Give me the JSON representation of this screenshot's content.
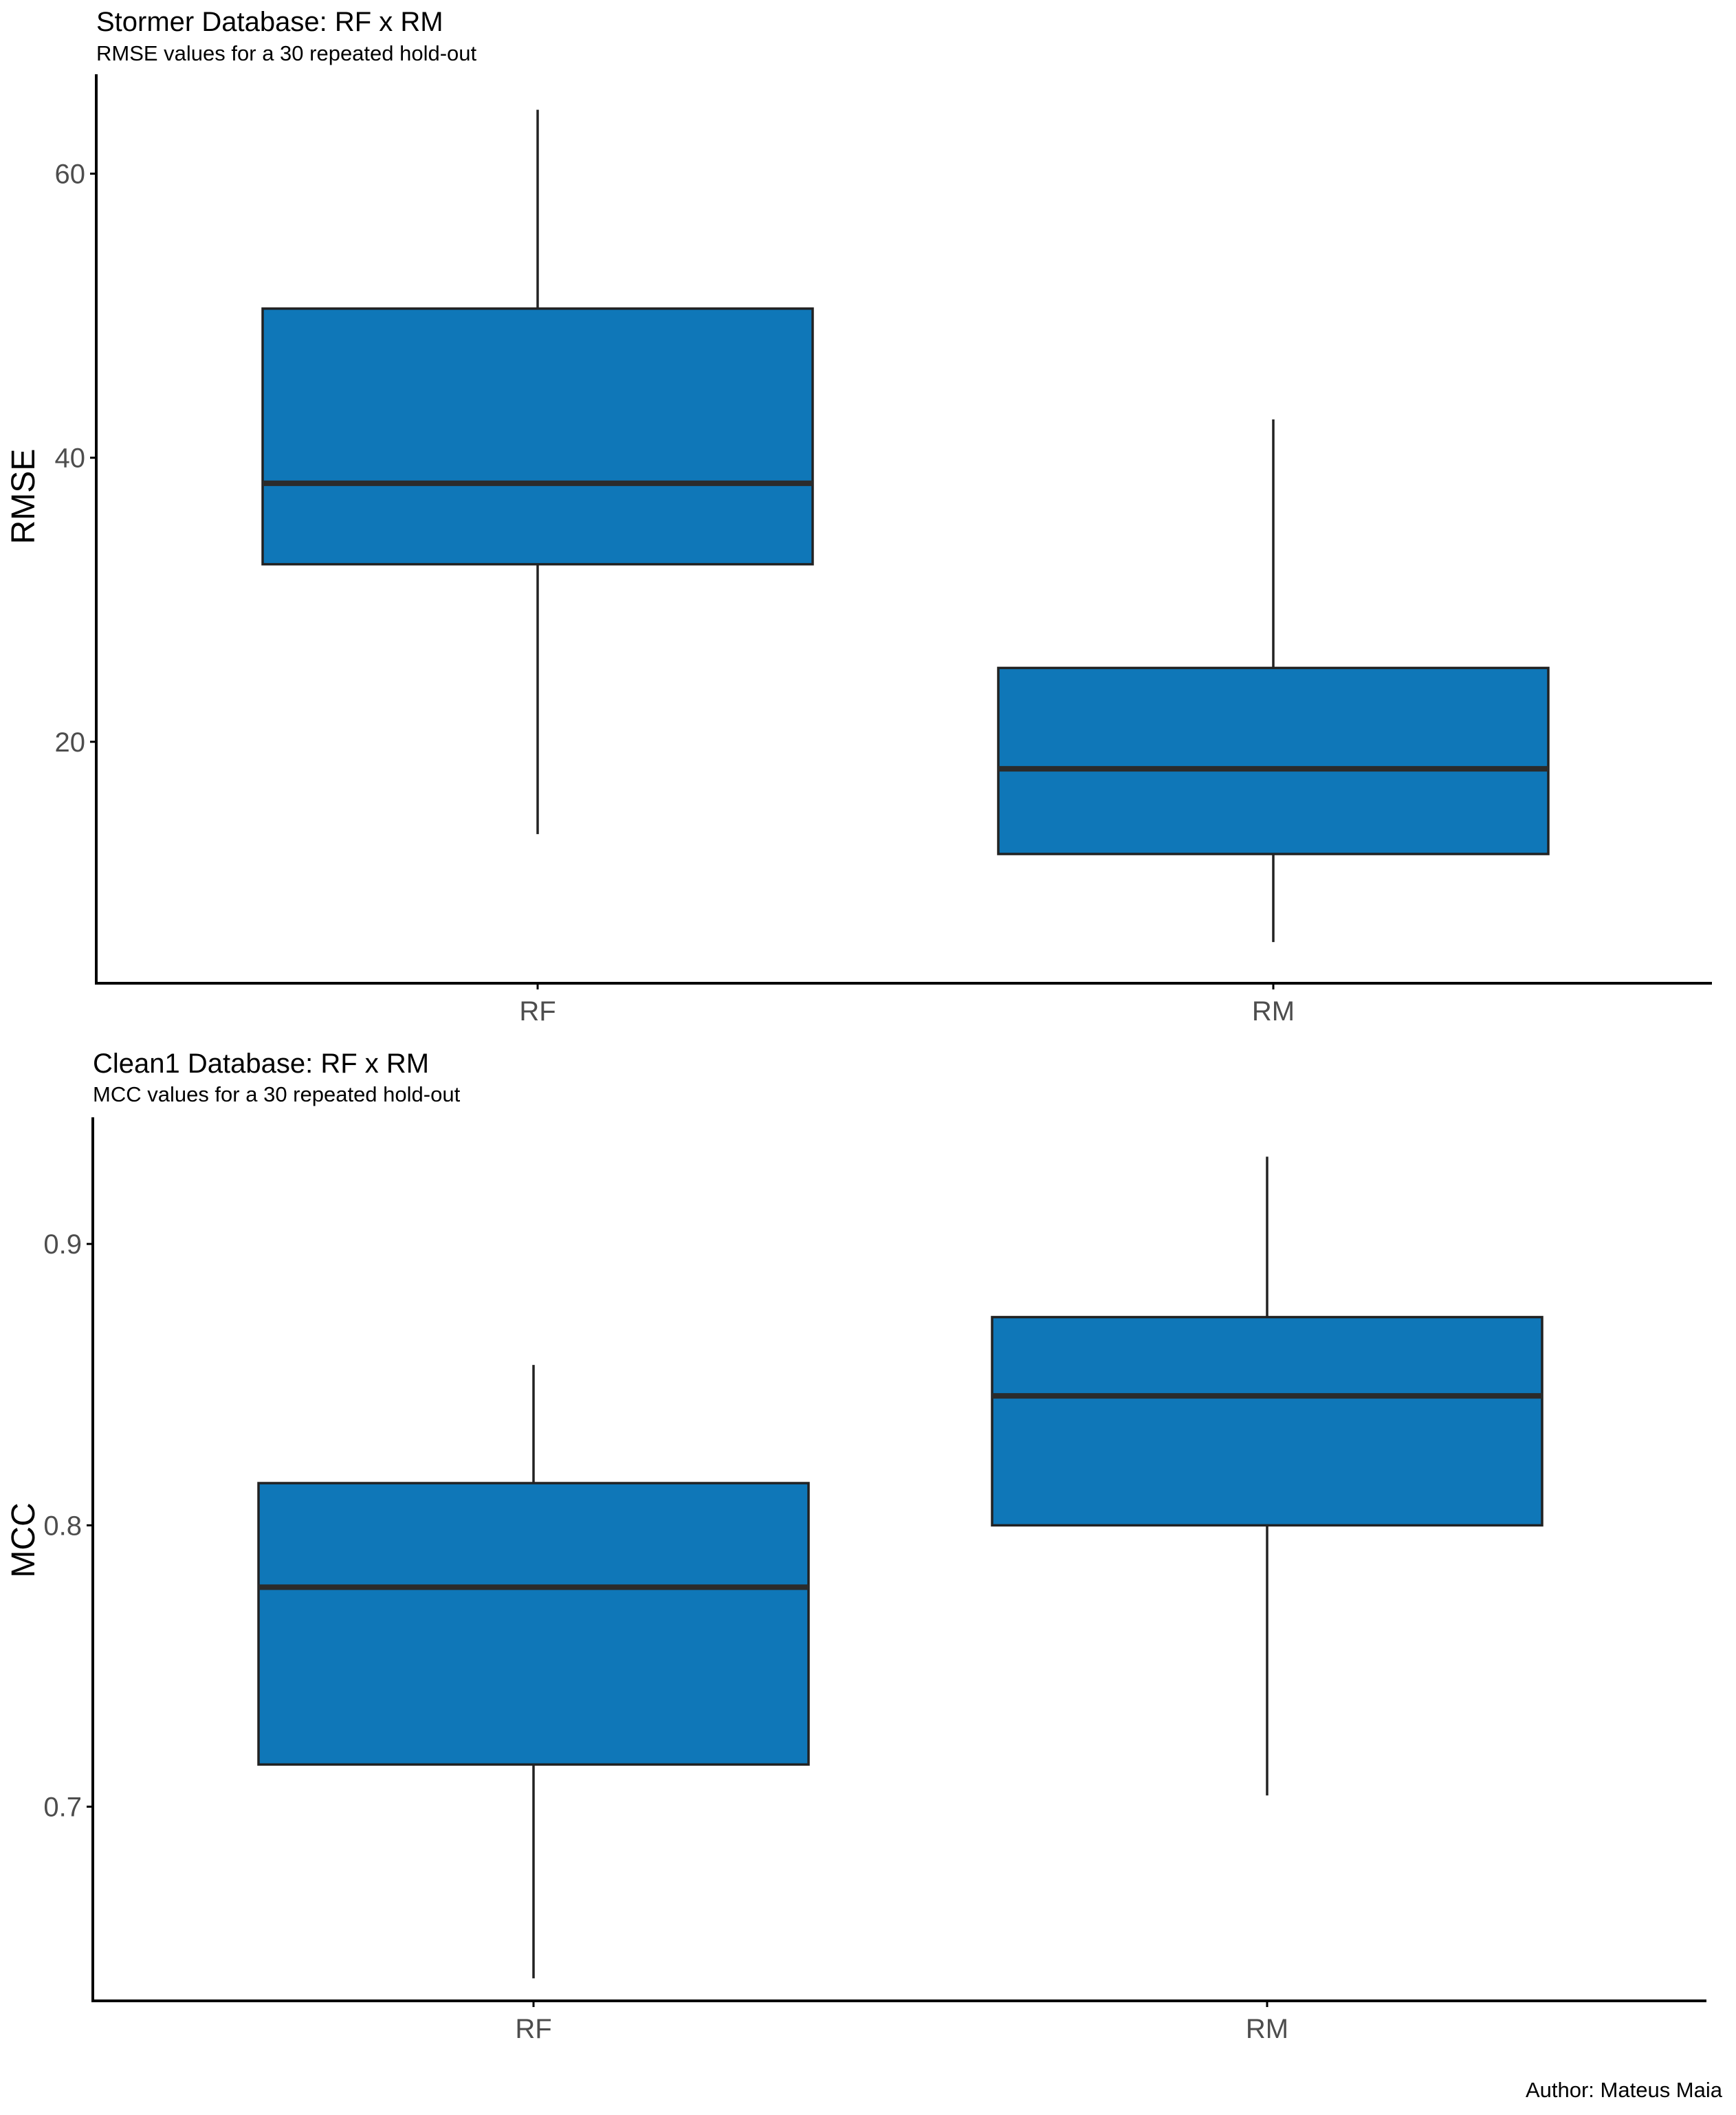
{
  "caption": "Author: Mateus Maia",
  "colors": {
    "box_fill": "#0f77b8",
    "box_stroke": "#222222",
    "median": "#2b2b2b",
    "axis": "#000000",
    "tick_text": "#4d4d4d"
  },
  "chart_data": [
    {
      "type": "boxplot",
      "title": "Stormer Database: RF x RM",
      "subtitle": "RMSE values for a 30 repeated hold-out",
      "ylabel": "RMSE",
      "xlabel": "",
      "categories": [
        "RF",
        "RM"
      ],
      "ylim": [
        3,
        67
      ],
      "yticks": [
        20,
        40,
        60
      ],
      "grid": false,
      "boxes": [
        {
          "label": "RF",
          "lower_whisker": 13.5,
          "q1": 32.5,
          "median": 38.2,
          "q3": 50.5,
          "upper_whisker": 64.5
        },
        {
          "label": "RM",
          "lower_whisker": 5.9,
          "q1": 12.1,
          "median": 18.1,
          "q3": 25.2,
          "upper_whisker": 42.7
        }
      ]
    },
    {
      "type": "boxplot",
      "title": "Clean1 Database: RF x RM",
      "subtitle": "MCC values for a 30 repeated hold-out",
      "ylabel": "MCC",
      "xlabel": "",
      "categories": [
        "RF",
        "RM"
      ],
      "ylim": [
        0.631,
        0.945
      ],
      "yticks": [
        0.7,
        0.8,
        0.9
      ],
      "grid": false,
      "boxes": [
        {
          "label": "RF",
          "lower_whisker": 0.639,
          "q1": 0.715,
          "median": 0.778,
          "q3": 0.815,
          "upper_whisker": 0.857
        },
        {
          "label": "RM",
          "lower_whisker": 0.704,
          "q1": 0.8,
          "median": 0.846,
          "q3": 0.874,
          "upper_whisker": 0.931
        }
      ]
    }
  ]
}
